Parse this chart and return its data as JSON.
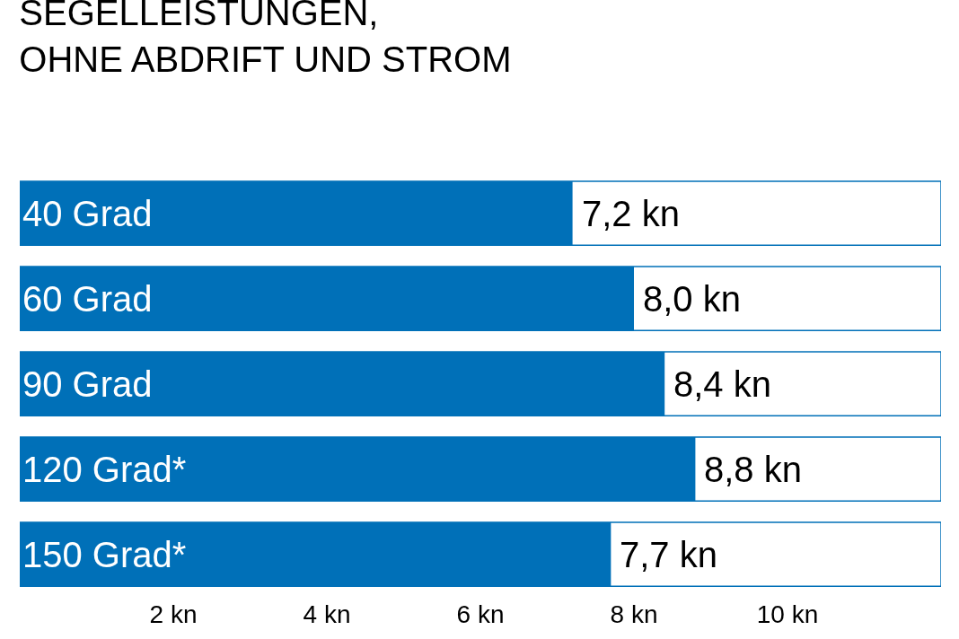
{
  "chart_data": {
    "type": "bar",
    "orientation": "horizontal",
    "title": "SEGELLEISTUNGEN,\nOHNE ABDRIFT UND STROM",
    "categories": [
      "40 Grad",
      "60 Grad",
      "90 Grad",
      "120 Grad*",
      "150 Grad*"
    ],
    "values": [
      7.2,
      8.0,
      8.4,
      8.8,
      7.7
    ],
    "value_labels": [
      "7,2 kn",
      "8,0 kn",
      "8,4 kn",
      "8,8 kn",
      "7,7 kn"
    ],
    "color": "#0070b8",
    "xlim": [
      0,
      12
    ],
    "xticks": [
      {
        "value": 2,
        "label": "2 kn"
      },
      {
        "value": 4,
        "label": "4 kn"
      },
      {
        "value": 6,
        "label": "6 kn"
      },
      {
        "value": 8,
        "label": "8 kn"
      },
      {
        "value": 10,
        "label": "10 kn"
      }
    ],
    "grid": false,
    "legend": false,
    "tick_labels": "x"
  }
}
